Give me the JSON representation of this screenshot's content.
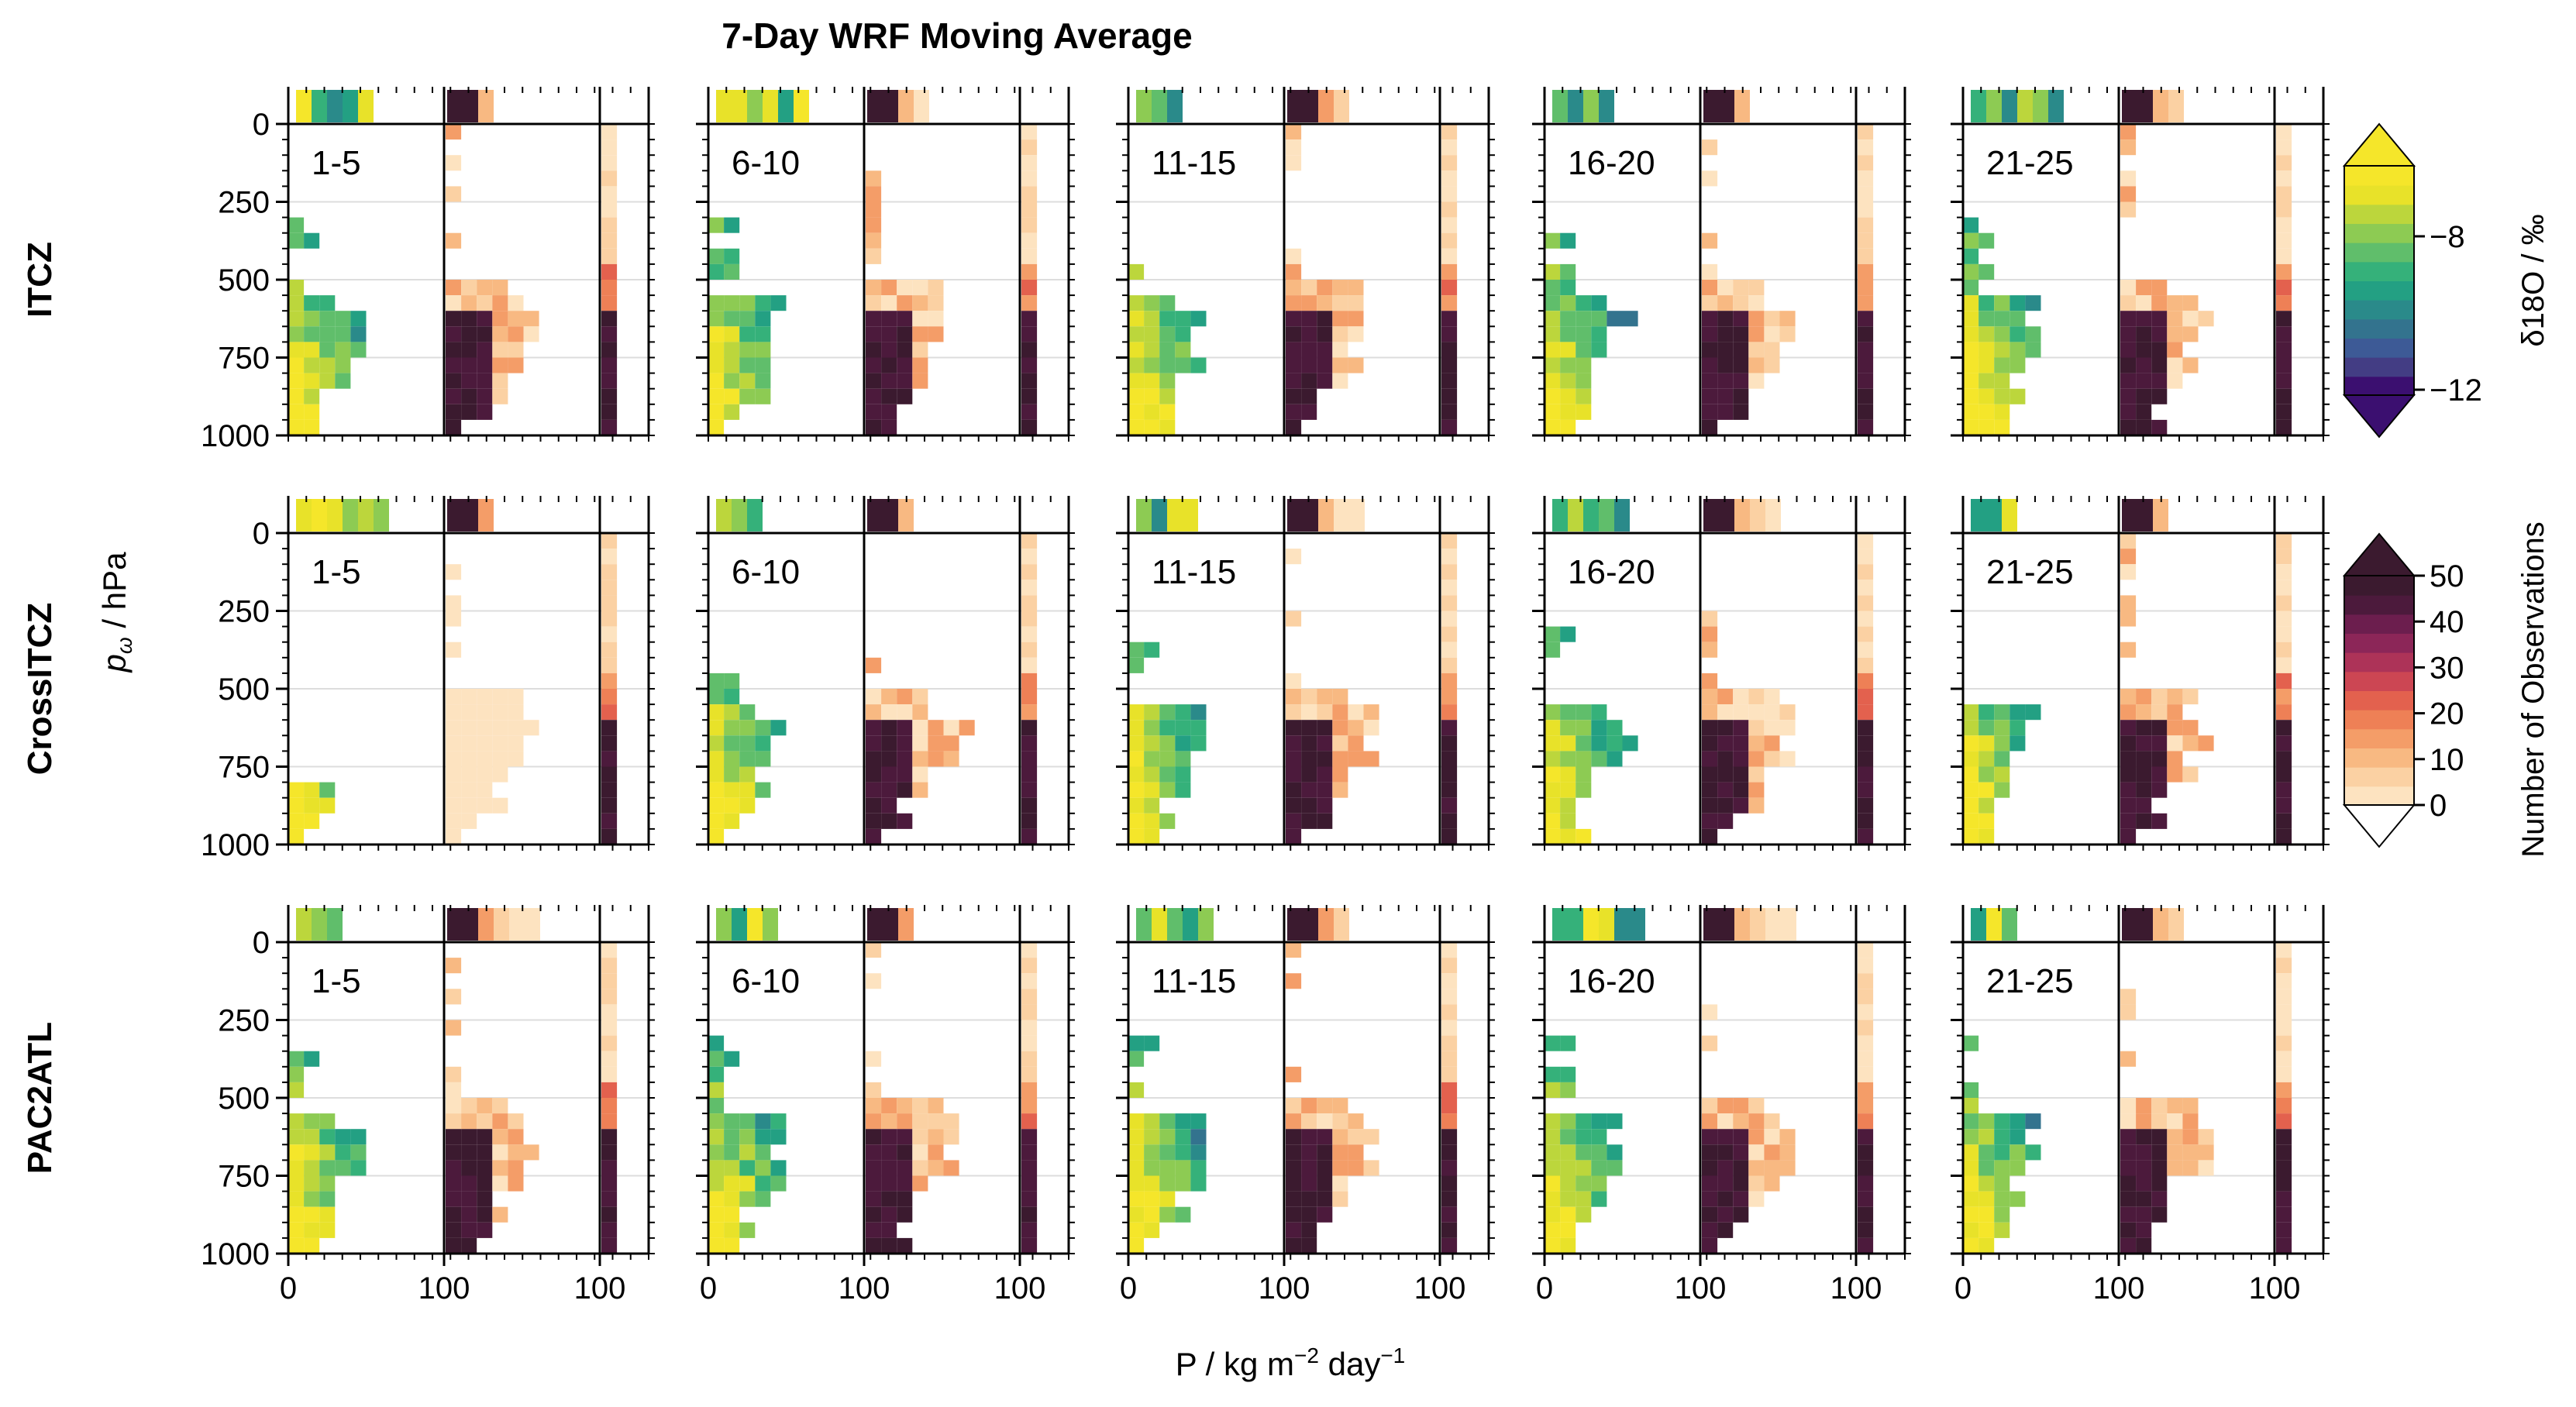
{
  "chart_data": {
    "type": "heatmap",
    "title": "7-Day WRF Moving Average",
    "rows": [
      {
        "name": "ITCZ"
      },
      {
        "name": "CrossITCZ"
      },
      {
        "name": "PAC2ATL"
      }
    ],
    "columns": [
      "1-5",
      "6-10",
      "11-15",
      "16-20",
      "21-25"
    ],
    "ylabel_main": "p",
    "ylabel_sub": "ω",
    "ylabel_unit": " / hPa",
    "xlabel": "P / kg m−2 day−1",
    "y_ticks": [
      "0",
      "250",
      "500",
      "750",
      "1000"
    ],
    "ylim": [
      1000,
      0
    ],
    "panel_x_ticks": [
      "0",
      "100",
      "100"
    ],
    "colorbar_d18O": {
      "label": "δ18O / ‰",
      "ticks": [
        "−8",
        "−12"
      ],
      "range": [
        -13,
        -4
      ],
      "colors": [
        "#3b0f70",
        "#433d84",
        "#3d5a96",
        "#33738e",
        "#2a8a8a",
        "#23a083",
        "#35b17a",
        "#60be6b",
        "#8dcb53",
        "#bcd63c",
        "#e8e229",
        "#f5e62a"
      ]
    },
    "colorbar_obs": {
      "label": "Number of Observations",
      "ticks": [
        "0",
        "10",
        "20",
        "30",
        "40",
        "50"
      ],
      "range": [
        0,
        50
      ],
      "colors": [
        "#fde3c0",
        "#fbd1a3",
        "#f8b982",
        "#f49d68",
        "#ee8056",
        "#e3614e",
        "#cc4653",
        "#ad3358",
        "#8c2658",
        "#6c1e4e",
        "#4c1a3c",
        "#3b1a2f"
      ]
    }
  }
}
